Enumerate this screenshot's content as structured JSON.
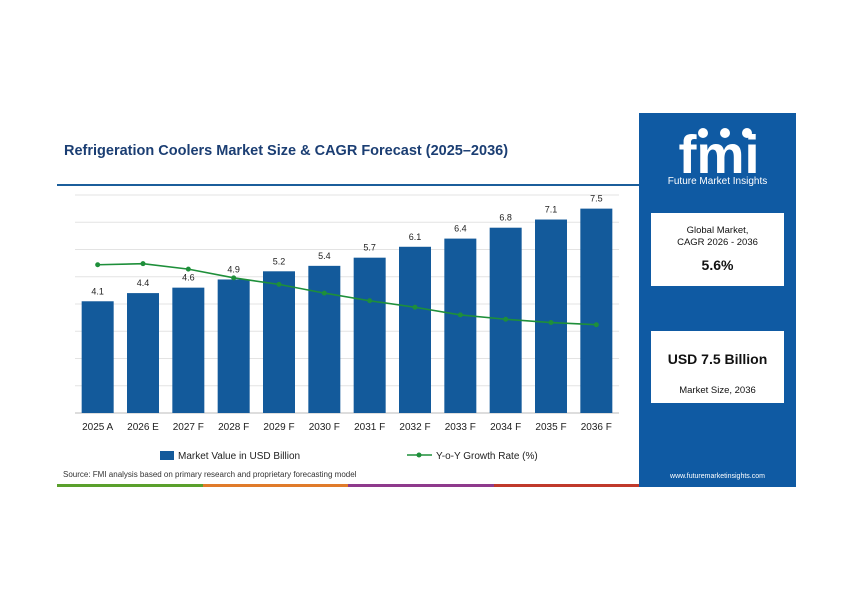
{
  "title": "Refrigeration Coolers Market Size & CAGR Forecast (2025–2036)",
  "source": "Source: FMI analysis based on primary research and proprietary forecasting model",
  "brand": {
    "logo_text": "fmi",
    "logo_sub": "Future Market Insights",
    "url": "www.futuremarketinsights.com"
  },
  "stats": {
    "cagr_label_1": "Global Market,",
    "cagr_label_2": "CAGR 2026 - 2036",
    "cagr_value": "5.6%",
    "size_value": "USD 7.5 Billion",
    "size_label": "Market Size, 2036"
  },
  "colors": {
    "bar": "#135a9b",
    "line": "#1e8f3a",
    "panel": "#0f5aa3",
    "title": "#1b3e73"
  },
  "bottom_bar_colors": [
    "#5aa02c",
    "#e07b2a",
    "#8e3a8c",
    "#c0392b"
  ],
  "chart_data": {
    "type": "bar",
    "categories": [
      "2025 A",
      "2026 E",
      "2027 F",
      "2028 F",
      "2029 F",
      "2030 F",
      "2031 F",
      "2032 F",
      "2033 F",
      "2034 F",
      "2035 F",
      "2036 F"
    ],
    "series": [
      {
        "name": "Market Value in USD Billion",
        "type": "bar",
        "values": [
          4.1,
          4.4,
          4.6,
          4.9,
          5.2,
          5.4,
          5.7,
          6.1,
          6.4,
          6.8,
          7.1,
          7.5
        ]
      },
      {
        "name": "Y-o-Y Growth Rate (%)",
        "type": "line",
        "values": [
          6.8,
          6.85,
          6.6,
          6.2,
          5.9,
          5.5,
          5.15,
          4.85,
          4.5,
          4.3,
          4.15,
          4.05
        ]
      }
    ],
    "ylim": [
      0,
      8
    ],
    "y2lim": [
      0,
      10
    ],
    "grid": true,
    "legend": "bottom"
  }
}
